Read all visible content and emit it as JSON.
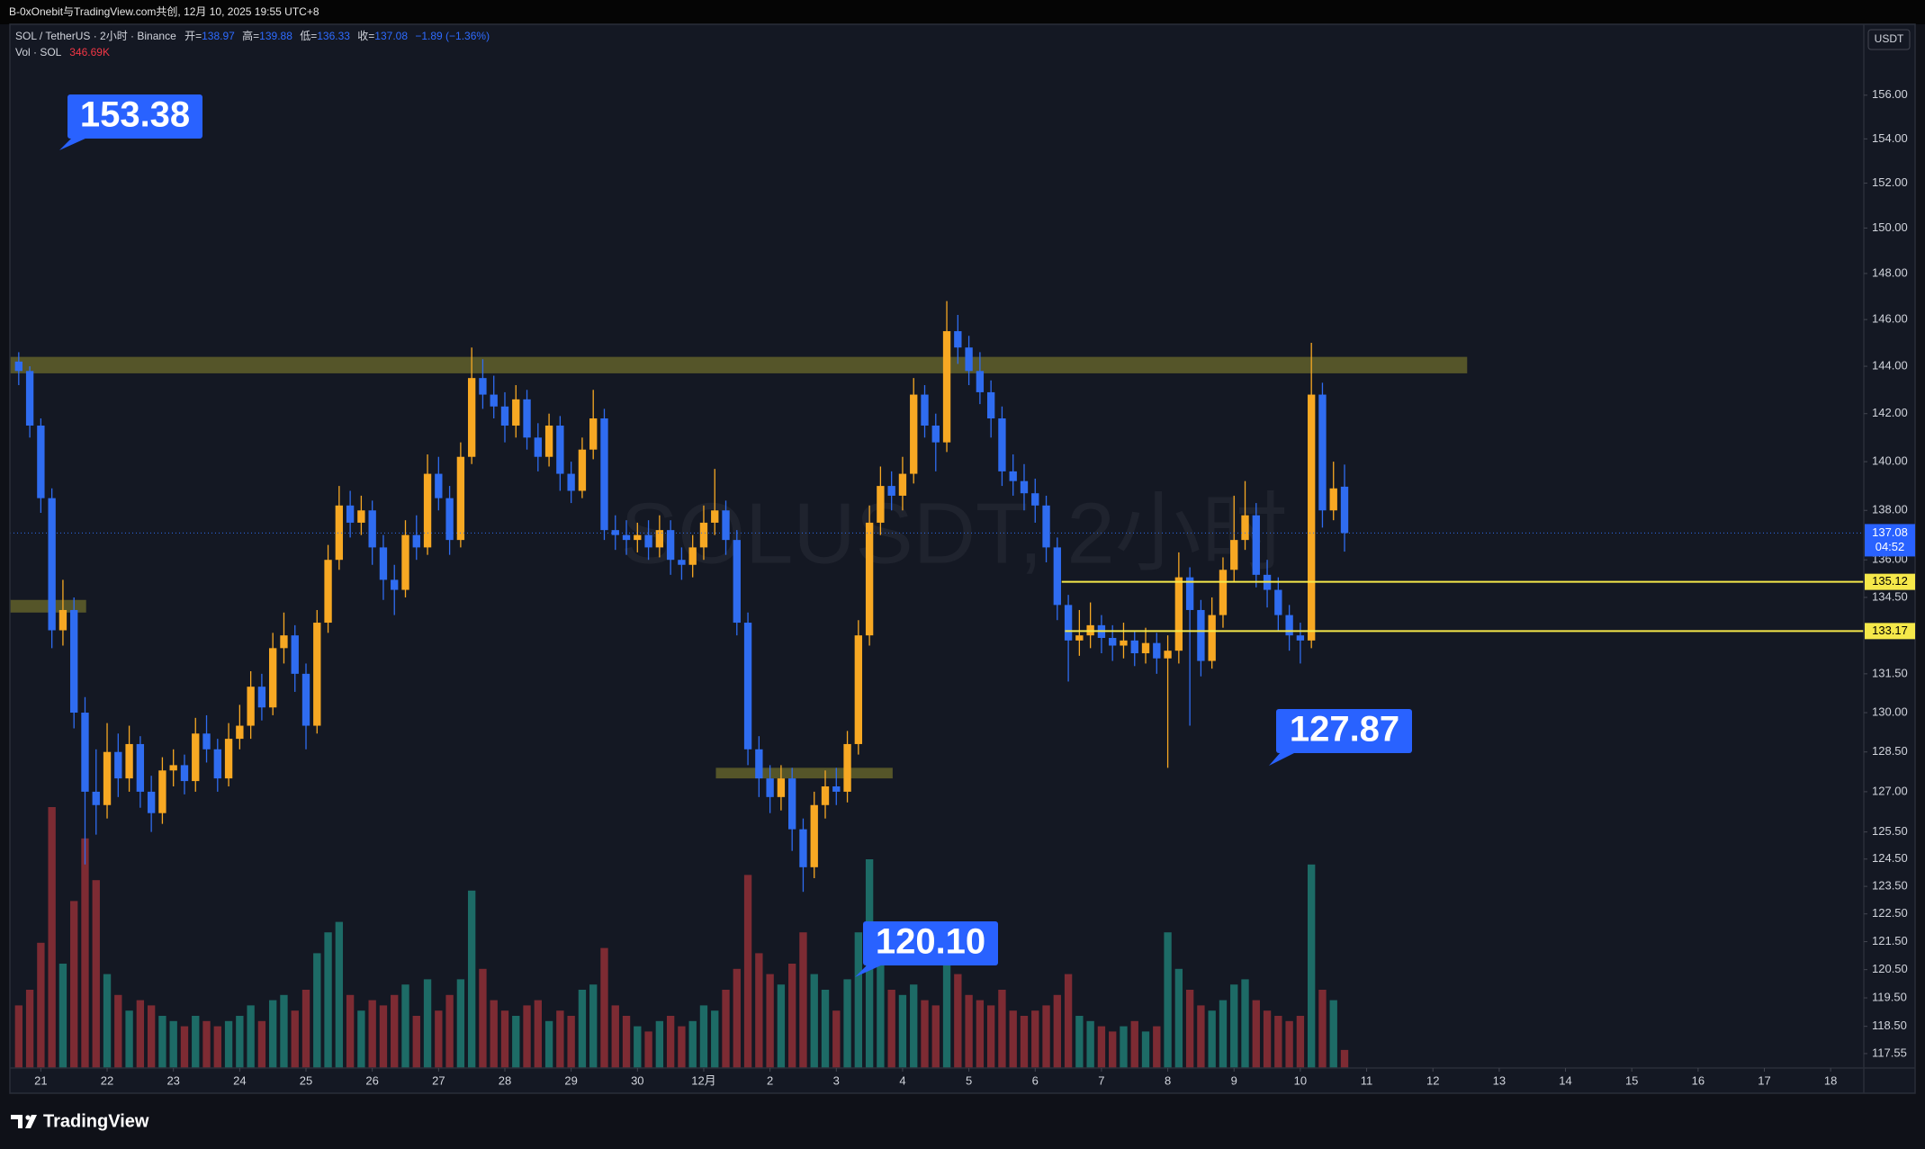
{
  "header": "B-0xOnebit与TradingView.com共创, 12月 10, 2025 19:55 UTC+8",
  "footer": "TradingView",
  "chart_data": {
    "type": "candlestick",
    "watermark": "SOLUSDT, 2小时",
    "legend": {
      "symbol": "SOL / TetherUS · 2小时 · Binance",
      "open_label": "开=",
      "open": 138.97,
      "high_label": "高=",
      "high": 139.88,
      "low_label": "低=",
      "low": 136.33,
      "close_label": "收=",
      "close": 137.08,
      "change": "−1.89 (−1.36%)",
      "volume_name": "Vol · SOL",
      "volume_value": "346.69K"
    },
    "currency": "USDT",
    "countdown": "04:52",
    "annotations": [
      "153.38",
      "127.87",
      "120.10"
    ],
    "log_scale": true,
    "up_color": "#f7a823",
    "down_color": "#2f6cf0",
    "volume_up_color": "#1d6b66",
    "volume_down_color": "#7d2b33",
    "zone_color": "#6b6a2c",
    "level_color": "#f5e84a",
    "open": [
      144.2,
      143.8,
      141.5,
      138.5,
      133.2,
      134.0,
      130.0,
      127.0,
      126.5,
      128.5,
      127.5,
      128.8,
      127.0,
      126.2,
      127.8,
      128.0,
      127.4,
      129.2,
      128.6,
      127.5,
      129.0,
      129.5,
      131.0,
      130.2,
      132.5,
      133.0,
      131.5,
      129.5,
      133.5,
      136.0,
      138.2,
      137.5,
      138.0,
      136.5,
      135.2,
      134.8,
      137.0,
      136.5,
      139.5,
      138.5,
      136.8,
      140.2,
      143.5,
      142.8,
      142.3,
      141.5,
      142.6,
      141.0,
      140.2,
      141.5,
      139.5,
      138.8,
      140.5,
      141.8,
      137.2,
      137.0,
      136.8,
      137.0,
      136.5,
      137.2,
      136.0,
      135.8,
      136.5,
      137.5,
      138.0,
      136.8,
      133.5,
      128.6,
      127.5,
      126.8,
      127.5,
      125.6,
      124.2,
      126.5,
      127.2,
      127.0,
      128.8,
      133.0,
      137.5,
      139.0,
      138.6,
      139.5,
      142.8,
      141.5,
      140.8,
      145.5,
      144.8,
      143.8,
      142.9,
      141.8,
      139.6,
      139.2,
      138.7,
      138.2,
      136.5,
      134.2,
      132.8,
      133.0,
      133.4,
      132.9,
      132.6,
      132.8,
      132.3,
      132.7,
      132.1,
      132.4,
      135.3,
      134.0,
      132.0,
      133.8,
      135.6,
      136.8,
      137.8,
      135.4,
      134.8,
      133.8,
      133.0,
      132.8,
      142.8,
      138.0,
      138.97
    ],
    "high": [
      144.6,
      144.0,
      141.8,
      138.9,
      135.2,
      134.5,
      130.6,
      128.6,
      129.6,
      129.2,
      129.5,
      129.1,
      127.6,
      128.3,
      128.6,
      128.4,
      129.8,
      129.9,
      129.0,
      129.6,
      130.3,
      131.6,
      131.5,
      133.1,
      133.9,
      133.4,
      131.9,
      134.0,
      136.6,
      139.0,
      138.8,
      138.6,
      138.4,
      137.0,
      135.8,
      137.6,
      137.8,
      140.3,
      140.2,
      139.0,
      140.8,
      144.8,
      144.3,
      143.6,
      142.9,
      143.2,
      143.0,
      141.6,
      142.0,
      141.9,
      140.0,
      141.0,
      143.0,
      142.2,
      137.8,
      137.6,
      137.5,
      137.6,
      137.8,
      137.6,
      136.5,
      137.0,
      138.2,
      139.7,
      138.4,
      137.2,
      133.9,
      129.1,
      128.0,
      128.0,
      127.9,
      126.0,
      127.0,
      127.8,
      127.9,
      129.3,
      133.6,
      138.2,
      139.8,
      139.6,
      140.2,
      143.5,
      143.2,
      142.0,
      146.8,
      146.2,
      145.3,
      144.6,
      143.4,
      142.3,
      140.3,
      139.9,
      139.3,
      138.6,
      136.9,
      134.6,
      134.0,
      134.3,
      133.8,
      133.4,
      133.5,
      133.2,
      133.3,
      133.1,
      133.0,
      136.3,
      135.7,
      134.4,
      134.5,
      136.1,
      138.6,
      139.2,
      138.3,
      136.0,
      135.3,
      134.2,
      133.5,
      145.0,
      143.3,
      140.0,
      139.88
    ],
    "low": [
      143.2,
      141.0,
      137.9,
      132.5,
      132.6,
      129.4,
      124.3,
      125.4,
      126.0,
      126.8,
      127.0,
      126.4,
      125.5,
      125.8,
      127.2,
      126.9,
      127.0,
      128.1,
      127.0,
      127.2,
      128.6,
      129.0,
      129.7,
      129.9,
      131.9,
      130.8,
      128.6,
      129.2,
      133.1,
      135.6,
      136.9,
      137.0,
      135.8,
      134.4,
      133.8,
      134.5,
      136.0,
      136.2,
      138.0,
      136.2,
      136.5,
      139.9,
      142.2,
      141.8,
      140.8,
      141.0,
      140.5,
      139.6,
      139.8,
      138.8,
      138.3,
      138.5,
      140.1,
      136.8,
      136.4,
      136.2,
      136.3,
      136.0,
      136.1,
      135.4,
      135.2,
      135.3,
      136.0,
      137.0,
      136.2,
      133.0,
      128.0,
      126.8,
      126.2,
      126.3,
      124.8,
      123.3,
      123.8,
      126.0,
      126.5,
      126.6,
      128.4,
      132.6,
      137.0,
      138.0,
      138.0,
      139.1,
      141.0,
      139.6,
      140.4,
      144.1,
      143.2,
      142.4,
      141.0,
      139.0,
      138.6,
      138.0,
      137.5,
      135.9,
      133.6,
      131.2,
      132.2,
      132.5,
      132.3,
      132.0,
      132.1,
      131.8,
      131.9,
      131.5,
      127.9,
      131.9,
      129.5,
      131.4,
      131.7,
      133.3,
      135.1,
      136.4,
      134.9,
      134.1,
      133.2,
      132.4,
      131.9,
      132.5,
      137.3,
      137.6,
      136.33
    ],
    "close": [
      143.8,
      141.5,
      138.5,
      133.2,
      134.0,
      130.0,
      127.0,
      126.5,
      128.5,
      127.5,
      128.8,
      127.0,
      126.2,
      127.8,
      128.0,
      127.4,
      129.2,
      128.6,
      127.5,
      129.0,
      129.5,
      131.0,
      130.2,
      132.5,
      133.0,
      131.5,
      129.5,
      133.5,
      136.0,
      138.2,
      137.5,
      138.0,
      136.5,
      135.2,
      134.8,
      137.0,
      136.5,
      139.5,
      138.5,
      136.8,
      140.2,
      143.5,
      142.8,
      142.3,
      141.5,
      142.6,
      141.0,
      140.2,
      141.5,
      139.5,
      138.8,
      140.5,
      141.8,
      137.2,
      137.0,
      136.8,
      137.0,
      136.5,
      137.2,
      136.0,
      135.8,
      136.5,
      137.5,
      138.0,
      136.8,
      133.5,
      128.6,
      127.5,
      126.8,
      127.5,
      125.6,
      124.2,
      126.5,
      127.2,
      127.0,
      128.8,
      133.0,
      137.5,
      139.0,
      138.6,
      139.5,
      142.8,
      141.5,
      140.8,
      145.5,
      144.8,
      143.8,
      142.9,
      141.8,
      139.6,
      139.2,
      138.7,
      138.2,
      136.5,
      134.2,
      132.8,
      133.0,
      133.4,
      132.9,
      132.6,
      132.8,
      132.3,
      132.7,
      132.1,
      132.4,
      135.3,
      134.0,
      132.0,
      133.8,
      135.6,
      136.8,
      137.8,
      135.4,
      134.8,
      133.8,
      133.0,
      132.8,
      142.8,
      138.0,
      138.9,
      137.08
    ],
    "volume": [
      1200,
      1500,
      2400,
      5000,
      2000,
      3200,
      4400,
      3600,
      1800,
      1400,
      1100,
      1300,
      1200,
      1000,
      900,
      800,
      1000,
      900,
      800,
      900,
      1000,
      1200,
      900,
      1300,
      1400,
      1100,
      1500,
      2200,
      2600,
      2800,
      1400,
      1100,
      1300,
      1200,
      1400,
      1600,
      1000,
      1700,
      1100,
      1400,
      1700,
      3400,
      1900,
      1300,
      1100,
      1000,
      1200,
      1300,
      900,
      1100,
      1000,
      1500,
      1600,
      2300,
      1200,
      1000,
      800,
      700,
      900,
      1000,
      800,
      900,
      1200,
      1100,
      1500,
      1900,
      3700,
      2200,
      1800,
      1600,
      2000,
      2600,
      1800,
      1500,
      1100,
      1700,
      2600,
      4000,
      2200,
      1500,
      1400,
      1600,
      1300,
      1200,
      2300,
      1800,
      1400,
      1300,
      1200,
      1500,
      1100,
      1000,
      1100,
      1200,
      1400,
      1800,
      1000,
      900,
      800,
      700,
      800,
      900,
      700,
      800,
      2600,
      1900,
      1500,
      1200,
      1100,
      1300,
      1600,
      1700,
      1300,
      1100,
      1000,
      900,
      1000,
      3900,
      1500,
      1300,
      346.69
    ],
    "volume_ylim": [
      0,
      20000
    ],
    "zones": [
      {
        "x": [
          -0.8,
          131.1
        ],
        "y": [
          143.7,
          144.4
        ]
      },
      {
        "x": [
          -0.8,
          6.1
        ],
        "y": [
          133.9,
          134.4
        ]
      },
      {
        "x": [
          63.1,
          79.1
        ],
        "y": [
          127.5,
          127.9
        ]
      }
    ],
    "levels": [
      {
        "value": 135.12,
        "from": 94.4
      },
      {
        "value": 133.17,
        "from": 94.7
      }
    ],
    "xlim": [
      -0.8,
      167
    ],
    "xticks": [
      {
        "value": 2,
        "label": "21"
      },
      {
        "value": 8,
        "label": "22"
      },
      {
        "value": 14,
        "label": "23"
      },
      {
        "value": 20,
        "label": "24"
      },
      {
        "value": 26,
        "label": "25"
      },
      {
        "value": 32,
        "label": "26"
      },
      {
        "value": 38,
        "label": "27"
      },
      {
        "value": 44,
        "label": "28"
      },
      {
        "value": 50,
        "label": "29"
      },
      {
        "value": 56,
        "label": "30"
      },
      {
        "value": 62,
        "label": "12月"
      },
      {
        "value": 68,
        "label": "2"
      },
      {
        "value": 74,
        "label": "3"
      },
      {
        "value": 80,
        "label": "4"
      },
      {
        "value": 86,
        "label": "5"
      },
      {
        "value": 92,
        "label": "6"
      },
      {
        "value": 98,
        "label": "7"
      },
      {
        "value": 104,
        "label": "8"
      },
      {
        "value": 110,
        "label": "9"
      },
      {
        "value": 116,
        "label": "10"
      },
      {
        "value": 122,
        "label": "11"
      },
      {
        "value": 128,
        "label": "12"
      },
      {
        "value": 134,
        "label": "13"
      },
      {
        "value": 140,
        "label": "14"
      },
      {
        "value": 146,
        "label": "15"
      },
      {
        "value": 152,
        "label": "16"
      },
      {
        "value": 158,
        "label": "17"
      },
      {
        "value": 164,
        "label": "18"
      }
    ],
    "ylim": [
      117.05,
      159.3
    ],
    "yticks": [
      {
        "value": 156,
        "label": "156.00"
      },
      {
        "value": 154,
        "label": "154.00"
      },
      {
        "value": 152,
        "label": "152.00"
      },
      {
        "value": 150,
        "label": "150.00"
      },
      {
        "value": 148,
        "label": "148.00"
      },
      {
        "value": 146,
        "label": "146.00"
      },
      {
        "value": 144,
        "label": "144.00"
      },
      {
        "value": 142,
        "label": "142.00"
      },
      {
        "value": 140,
        "label": "140.00"
      },
      {
        "value": 138,
        "label": "138.00"
      },
      {
        "value": 136,
        "label": "136.00"
      },
      {
        "value": 134.5,
        "label": "134.50"
      },
      {
        "value": 131.5,
        "label": "131.50"
      },
      {
        "value": 130,
        "label": "130.00"
      },
      {
        "value": 128.5,
        "label": "128.50"
      },
      {
        "value": 127,
        "label": "127.00"
      },
      {
        "value": 125.5,
        "label": "125.50"
      },
      {
        "value": 124.5,
        "label": "124.50"
      },
      {
        "value": 123.5,
        "label": "123.50"
      },
      {
        "value": 122.5,
        "label": "122.50"
      },
      {
        "value": 121.5,
        "label": "121.50"
      },
      {
        "value": 120.5,
        "label": "120.50"
      },
      {
        "value": 119.5,
        "label": "119.50"
      },
      {
        "value": 118.5,
        "label": "118.50"
      },
      {
        "value": 117.55,
        "label": "117.55"
      }
    ]
  }
}
